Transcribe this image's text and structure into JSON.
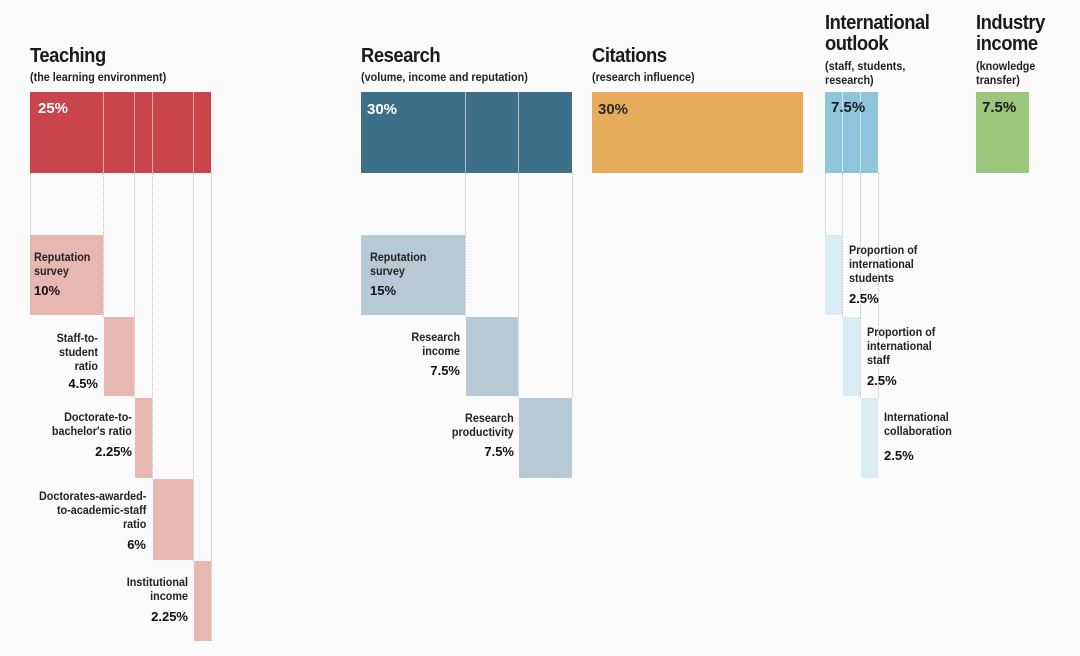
{
  "colors": {
    "teaching": "#c9444b",
    "teaching_light": "#e8b7b2",
    "research": "#3d6f89",
    "research_light": "#b8c9d6",
    "citations": "#e6ab5b",
    "international": "#8ec5dc",
    "international_light": "#d9ebf3",
    "industry": "#9cc67b"
  },
  "teaching": {
    "title": "Teaching",
    "subtitle": "(the learning environment)",
    "weight": "25%",
    "components": [
      {
        "lines": [
          "Reputation",
          "survey"
        ],
        "weight": "10%"
      },
      {
        "lines": [
          "Staff-to-",
          "student",
          "ratio"
        ],
        "weight": "4.5%"
      },
      {
        "lines": [
          "Doctorate-to-",
          "bachelor's ratio"
        ],
        "weight": "2.25%"
      },
      {
        "lines": [
          "Doctorates-awarded-",
          "to-academic-staff",
          "ratio"
        ],
        "weight": "6%"
      },
      {
        "lines": [
          "Institutional",
          "income"
        ],
        "weight": "2.25%"
      }
    ]
  },
  "research": {
    "title": "Research",
    "subtitle": "(volume, income and reputation)",
    "weight": "30%",
    "components": [
      {
        "lines": [
          "Reputation",
          "survey"
        ],
        "weight": "15%"
      },
      {
        "lines": [
          "Research",
          "income"
        ],
        "weight": "7.5%"
      },
      {
        "lines": [
          "Research",
          "productivity"
        ],
        "weight": "7.5%"
      }
    ]
  },
  "citations": {
    "title": "Citations",
    "subtitle": "(research influence)",
    "weight": "30%"
  },
  "international": {
    "title_lines": [
      "International",
      "outlook"
    ],
    "subtitle_lines": [
      "(staff, students,",
      "research)"
    ],
    "weight": "7.5%",
    "components": [
      {
        "lines": [
          "Proportion of",
          "international",
          "students"
        ],
        "weight": "2.5%"
      },
      {
        "lines": [
          "Proportion of",
          "international",
          "staff"
        ],
        "weight": "2.5%"
      },
      {
        "lines": [
          "International",
          "collaboration"
        ],
        "weight": "2.5%"
      }
    ]
  },
  "industry": {
    "title_lines": [
      "Industry",
      "income"
    ],
    "subtitle_lines": [
      "(knowledge",
      "transfer)"
    ],
    "weight": "7.5%"
  }
}
